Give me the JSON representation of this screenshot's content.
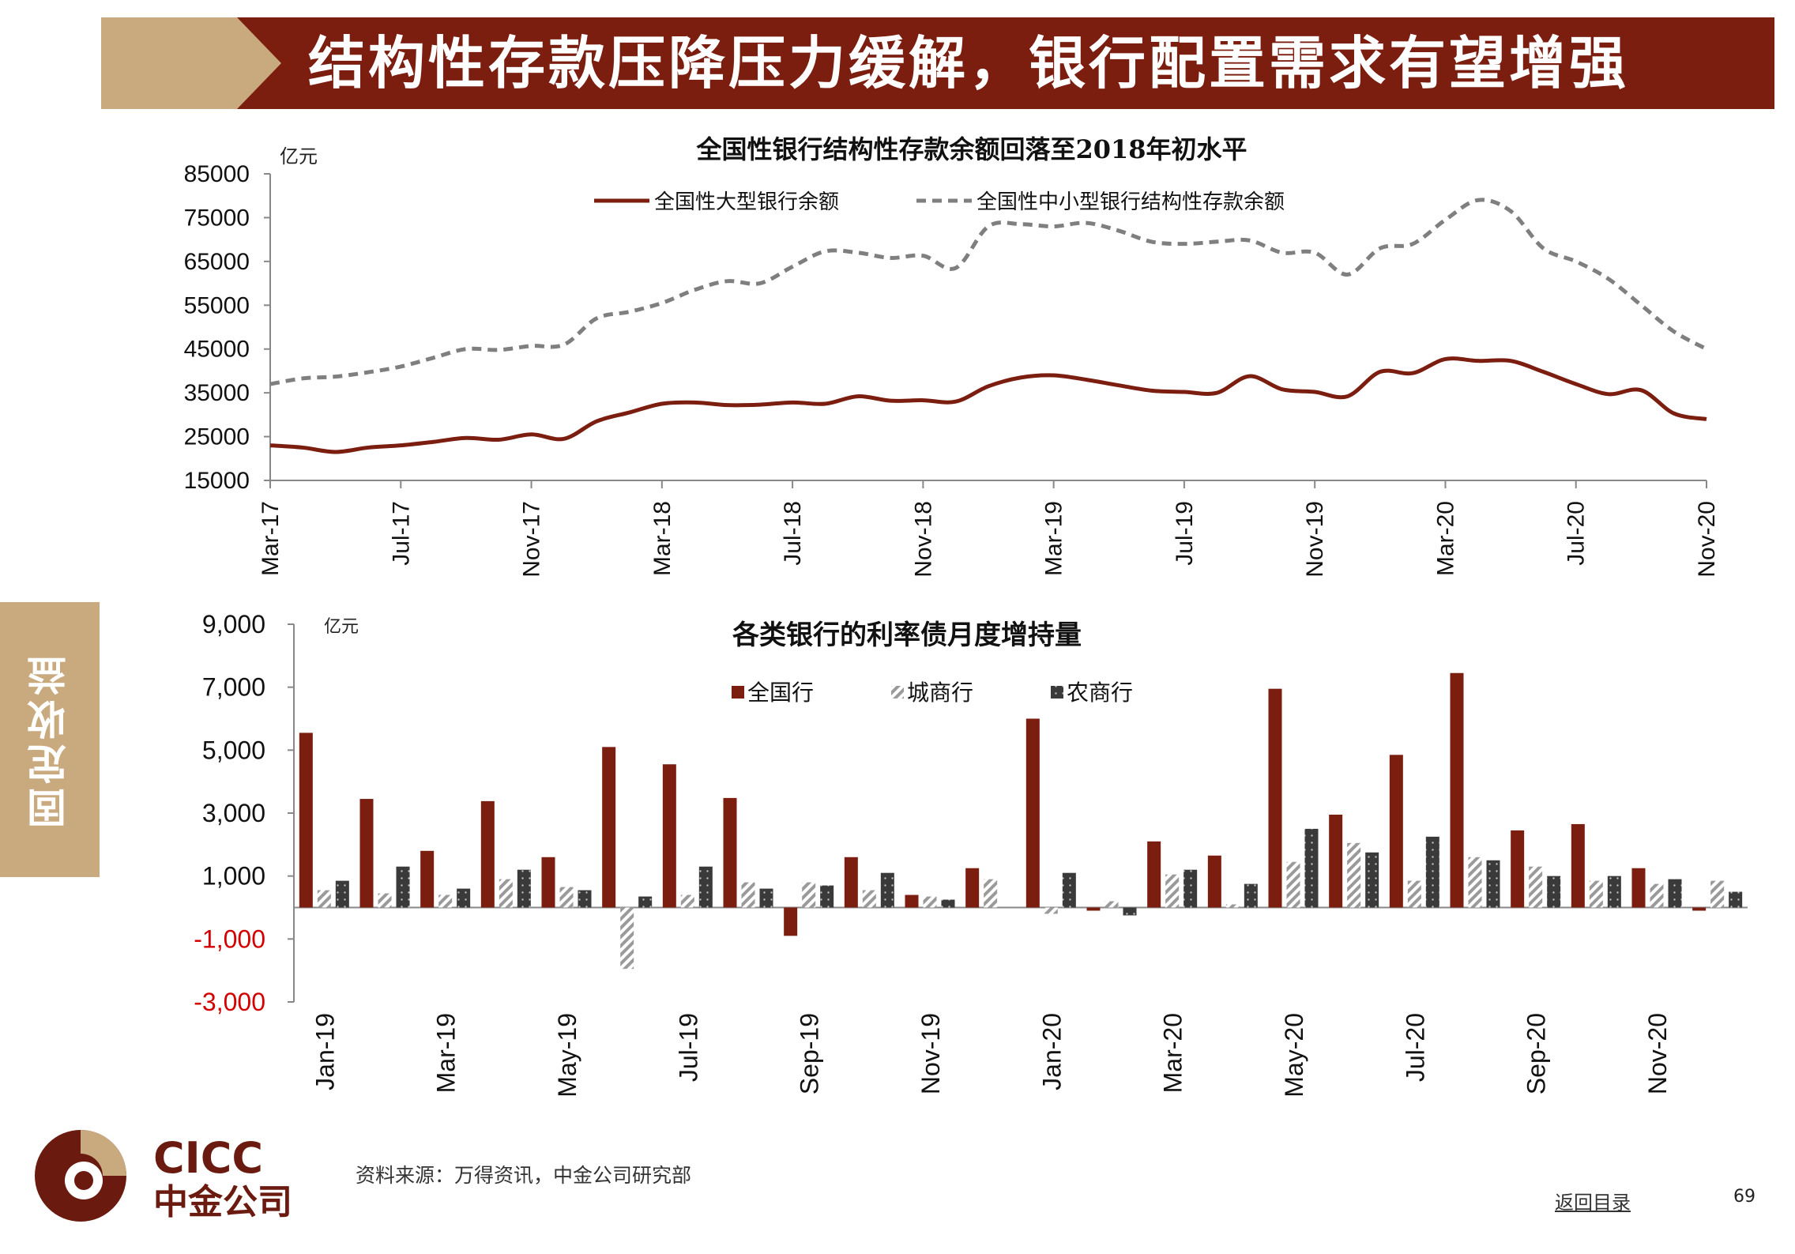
{
  "header": {
    "title": "结构性存款压降压力缓解，银行配置需求有望增强"
  },
  "side_tab": {
    "label": "固定收益"
  },
  "colors": {
    "brand_red": "#7b1e10",
    "header_tan": "#c9a97e",
    "gray_dashed": "#7f7f7f",
    "negative_tick": "#d40000",
    "dark_bar": "#404040"
  },
  "chart_data": [
    {
      "type": "line",
      "title": "全国性银行结构性存款余额回落至2018年初水平",
      "ylabel": "亿元",
      "xlabel": "",
      "ylim": [
        15000,
        85000
      ],
      "yticks": [
        15000,
        25000,
        35000,
        45000,
        55000,
        65000,
        75000,
        85000
      ],
      "yticklabels": [
        "15000",
        "25000",
        "35000",
        "45000",
        "55000",
        "65000",
        "75000",
        "85000"
      ],
      "x_tick_labels": [
        "Mar-17",
        "Jul-17",
        "Nov-17",
        "Mar-18",
        "Jul-18",
        "Nov-18",
        "Mar-19",
        "Jul-19",
        "Nov-19",
        "Mar-20",
        "Jul-20",
        "Nov-20"
      ],
      "x_tick_positions": [
        0,
        4,
        8,
        12,
        16,
        20,
        24,
        28,
        32,
        36,
        40,
        44
      ],
      "x": [
        "Mar-17",
        "Apr-17",
        "May-17",
        "Jun-17",
        "Jul-17",
        "Aug-17",
        "Sep-17",
        "Oct-17",
        "Nov-17",
        "Dec-17",
        "Jan-18",
        "Feb-18",
        "Mar-18",
        "Apr-18",
        "May-18",
        "Jun-18",
        "Jul-18",
        "Aug-18",
        "Sep-18",
        "Oct-18",
        "Nov-18",
        "Dec-18",
        "Jan-19",
        "Feb-19",
        "Mar-19",
        "Apr-19",
        "May-19",
        "Jun-19",
        "Jul-19",
        "Aug-19",
        "Sep-19",
        "Oct-19",
        "Nov-19",
        "Dec-19",
        "Jan-20",
        "Feb-20",
        "Mar-20",
        "Apr-20",
        "May-20",
        "Jun-20",
        "Jul-20",
        "Aug-20",
        "Sep-20",
        "Oct-20",
        "Nov-20"
      ],
      "legend_position": "top",
      "series": [
        {
          "name": "全国性大型银行余额",
          "style": "solid",
          "color": "#7b1e10",
          "values": [
            23000,
            22500,
            21500,
            22500,
            23000,
            23800,
            24700,
            24300,
            25500,
            24500,
            28500,
            30500,
            32500,
            32800,
            32200,
            32300,
            32800,
            32500,
            34200,
            33200,
            33300,
            33000,
            36500,
            38500,
            39000,
            38000,
            36700,
            35500,
            35200,
            35000,
            38800,
            35800,
            35200,
            34200,
            39800,
            39500,
            42700,
            42300,
            42300,
            39800,
            37000,
            34700,
            35600,
            30300,
            29000
          ]
        },
        {
          "name": "全国性中小型银行结构性存款余额",
          "style": "dashed",
          "color": "#7f7f7f",
          "values": [
            37000,
            38300,
            38700,
            39700,
            41000,
            43000,
            45000,
            44800,
            45700,
            46000,
            52000,
            53500,
            55500,
            58500,
            60500,
            60000,
            63800,
            67300,
            67000,
            65800,
            66300,
            63500,
            73000,
            73500,
            73000,
            73800,
            72000,
            69500,
            69000,
            69500,
            69800,
            67000,
            67000,
            62000,
            68000,
            69000,
            74500,
            79000,
            76500,
            68000,
            65000,
            61000,
            55000,
            49000,
            45000
          ]
        }
      ]
    },
    {
      "type": "bar",
      "title": "各类银行的利率债月度增持量",
      "ylabel": "亿元",
      "xlabel": "",
      "ylim": [
        -3000,
        9000
      ],
      "yticks": [
        -3000,
        -1000,
        1000,
        3000,
        5000,
        7000,
        9000
      ],
      "yticklabels": [
        "-3,000",
        "-1,000",
        "1,000",
        "3,000",
        "5,000",
        "7,000",
        "9,000"
      ],
      "categories": [
        "Jan-19",
        "Feb-19",
        "Mar-19",
        "Apr-19",
        "May-19",
        "Jun-19",
        "Jul-19",
        "Aug-19",
        "Sep-19",
        "Oct-19",
        "Nov-19",
        "Dec-19",
        "Jan-20",
        "Feb-20",
        "Mar-20",
        "Apr-20",
        "May-20",
        "Jun-20",
        "Jul-20",
        "Aug-20",
        "Sep-20",
        "Oct-20",
        "Nov-20",
        "Dec-20"
      ],
      "x_tick_labels": [
        "Jan-19",
        "Mar-19",
        "May-19",
        "Jul-19",
        "Sep-19",
        "Nov-19",
        "Jan-20",
        "Mar-20",
        "May-20",
        "Jul-20",
        "Sep-20",
        "Nov-20"
      ],
      "x_tick_positions": [
        0,
        2,
        4,
        6,
        8,
        10,
        12,
        14,
        16,
        18,
        20,
        22
      ],
      "legend_position": "top",
      "series": [
        {
          "name": "全国行",
          "color": "#7b1e10",
          "pattern": "solid",
          "values": [
            5550,
            3450,
            1800,
            3380,
            1600,
            5100,
            4550,
            3480,
            -900,
            1600,
            400,
            1250,
            6000,
            -100,
            2100,
            1650,
            6950,
            2950,
            4850,
            7450,
            2450,
            2650,
            1250,
            -100
          ]
        },
        {
          "name": "城商行",
          "color": "#a6a6a6",
          "pattern": "hatch",
          "values": [
            550,
            450,
            400,
            900,
            650,
            -1950,
            400,
            800,
            800,
            550,
            350,
            900,
            -200,
            200,
            1050,
            100,
            1450,
            2050,
            850,
            1600,
            1300,
            850,
            750,
            850
          ]
        },
        {
          "name": "农商行",
          "color": "#404040",
          "pattern": "dots",
          "values": [
            850,
            1300,
            600,
            1200,
            550,
            350,
            1300,
            600,
            700,
            1100,
            250,
            0,
            1100,
            -250,
            1200,
            750,
            2500,
            1750,
            2250,
            1500,
            1000,
            1000,
            900,
            500
          ]
        }
      ]
    }
  ],
  "logo": {
    "brand_en": "CICC",
    "brand_cn": "中金公司"
  },
  "footer": {
    "source": "资料来源：万得资讯，中金公司研究部",
    "back_link": "返回目录",
    "page_number": "69"
  }
}
